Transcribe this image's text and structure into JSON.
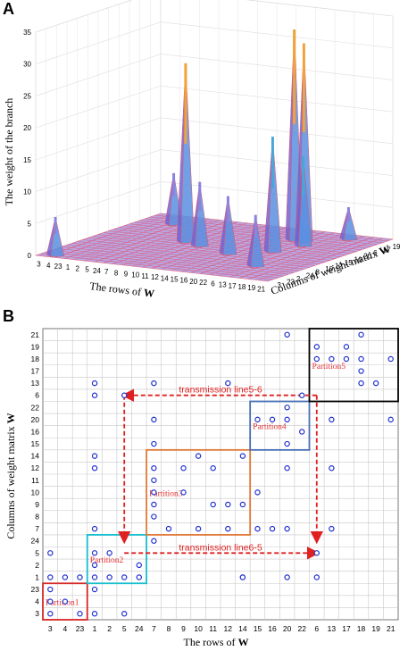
{
  "panelA": {
    "letter": "A",
    "zlabel": "The weight of the branch",
    "xlabel_prefix": "The rows of ",
    "xlabel_bold": "W",
    "ylabel_prefix": "Columns of weight matrix ",
    "ylabel_bold": "W",
    "zticks": [
      "0",
      "5",
      "10",
      "15",
      "20",
      "25",
      "30",
      "35"
    ],
    "row_ticks": [
      "3",
      "4",
      "23",
      "1",
      "2",
      "5",
      "24",
      "7",
      "8",
      "9",
      "10",
      "11",
      "12",
      "14",
      "15",
      "16",
      "20",
      "22",
      "6",
      "13",
      "17",
      "18",
      "19",
      "21"
    ],
    "col_ticks": [
      "3",
      "23",
      "2",
      "24",
      "8",
      "10",
      "12",
      "15",
      "16",
      "20",
      "6",
      "17",
      "19"
    ],
    "chart_data": {
      "type": "surface",
      "zlim": [
        0,
        35
      ],
      "peaks": [
        {
          "row": "1",
          "col": "22",
          "weight": 8
        },
        {
          "row": "4",
          "col": "3",
          "weight": 6
        },
        {
          "row": "8",
          "col": "14",
          "weight": 28
        },
        {
          "row": "10",
          "col": "12",
          "weight": 10
        },
        {
          "row": "15",
          "col": "9",
          "weight": 9
        },
        {
          "row": "20",
          "col": "6",
          "weight": 33
        },
        {
          "row": "22",
          "col": "6",
          "weight": 31
        },
        {
          "row": "22",
          "col": "14",
          "weight": 18
        },
        {
          "row": "6",
          "col": "20",
          "weight": 14
        },
        {
          "row": "13",
          "col": "5",
          "weight": 8
        },
        {
          "row": "17",
          "col": "18",
          "weight": 5
        }
      ]
    }
  },
  "panelB": {
    "letter": "B",
    "xlabel_prefix": "The rows of ",
    "xlabel_bold": "W",
    "ylabel_prefix": "Columns of weight matrix ",
    "ylabel_bold": "W",
    "chart_data": {
      "type": "scatter",
      "x_categories": [
        "3",
        "4",
        "23",
        "1",
        "2",
        "5",
        "24",
        "7",
        "8",
        "9",
        "10",
        "11",
        "12",
        "14",
        "15",
        "16",
        "20",
        "22",
        "6",
        "13",
        "17",
        "18",
        "19",
        "21"
      ],
      "y_categories": [
        "3",
        "4",
        "23",
        "1",
        "2",
        "5",
        "24",
        "7",
        "8",
        "9",
        "10",
        "11",
        "12",
        "14",
        "15",
        "16",
        "20",
        "22",
        "6",
        "13",
        "17",
        "18",
        "19",
        "21"
      ],
      "points": [
        [
          "3",
          "3"
        ],
        [
          "3",
          "4"
        ],
        [
          "3",
          "23"
        ],
        [
          "3",
          "1"
        ],
        [
          "3",
          "5"
        ],
        [
          "4",
          "1"
        ],
        [
          "4",
          "4"
        ],
        [
          "23",
          "3"
        ],
        [
          "23",
          "1"
        ],
        [
          "1",
          "23"
        ],
        [
          "1",
          "3"
        ],
        [
          "1",
          "1"
        ],
        [
          "1",
          "2"
        ],
        [
          "1",
          "5"
        ],
        [
          "1",
          "7"
        ],
        [
          "1",
          "12"
        ],
        [
          "1",
          "14"
        ],
        [
          "1",
          "6"
        ],
        [
          "1",
          "13"
        ],
        [
          "2",
          "1"
        ],
        [
          "2",
          "5"
        ],
        [
          "5",
          "1"
        ],
        [
          "5",
          "3"
        ],
        [
          "5",
          "6"
        ],
        [
          "24",
          "1"
        ],
        [
          "24",
          "2"
        ],
        [
          "7",
          "13"
        ],
        [
          "7",
          "20"
        ],
        [
          "7",
          "15"
        ],
        [
          "7",
          "12"
        ],
        [
          "7",
          "9"
        ],
        [
          "7",
          "11"
        ],
        [
          "7",
          "10"
        ],
        [
          "7",
          "8"
        ],
        [
          "7",
          "24"
        ],
        [
          "8",
          "7"
        ],
        [
          "9",
          "12"
        ],
        [
          "9",
          "10"
        ],
        [
          "10",
          "7"
        ],
        [
          "10",
          "14"
        ],
        [
          "11",
          "9"
        ],
        [
          "11",
          "12"
        ],
        [
          "12",
          "9"
        ],
        [
          "12",
          "7"
        ],
        [
          "14",
          "14"
        ],
        [
          "14",
          "9"
        ],
        [
          "14",
          "1"
        ],
        [
          "15",
          "10"
        ],
        [
          "15",
          "7"
        ],
        [
          "12",
          "13"
        ],
        [
          "14",
          "1"
        ],
        [
          "15",
          "20"
        ],
        [
          "16",
          "20"
        ],
        [
          "16",
          "7"
        ],
        [
          "20",
          "21"
        ],
        [
          "20",
          "22"
        ],
        [
          "20",
          "20"
        ],
        [
          "20",
          "15"
        ],
        [
          "20",
          "1"
        ],
        [
          "22",
          "6"
        ],
        [
          "22",
          "16"
        ],
        [
          "6",
          "1"
        ],
        [
          "6",
          "5"
        ],
        [
          "6",
          "19"
        ],
        [
          "6",
          "18"
        ],
        [
          "13",
          "18"
        ],
        [
          "13",
          "12"
        ],
        [
          "13",
          "7"
        ],
        [
          "13",
          "20"
        ],
        [
          "17",
          "18"
        ],
        [
          "17",
          "19"
        ],
        [
          "18",
          "21"
        ],
        [
          "18",
          "17"
        ],
        [
          "18",
          "18"
        ],
        [
          "18",
          "13"
        ],
        [
          "19",
          "13"
        ],
        [
          "21",
          "18"
        ],
        [
          "21",
          "20"
        ],
        [
          "20",
          "12"
        ],
        [
          "20",
          "7"
        ]
      ],
      "partitions": [
        {
          "label": "Partition1",
          "color": "#d62728",
          "x": [
            "3",
            "23"
          ],
          "y": [
            "3",
            "23"
          ]
        },
        {
          "label": "Partition2",
          "color": "#17becf",
          "x": [
            "1",
            "24"
          ],
          "y": [
            "1",
            "24"
          ]
        },
        {
          "label": "Partition3",
          "color": "#e07a3a",
          "x": [
            "7",
            "14"
          ],
          "y": [
            "7",
            "14"
          ]
        },
        {
          "label": "Partition4",
          "color": "#4a6fb5",
          "x": [
            "15",
            "22"
          ],
          "y": [
            "15",
            "22"
          ]
        },
        {
          "label": "Partition5",
          "color": "#000000",
          "x": [
            "6",
            "21"
          ],
          "y": [
            "6",
            "21"
          ]
        }
      ],
      "annotations": [
        {
          "text": "transmission line5-6",
          "from": [
            "6",
            "6"
          ],
          "to": [
            "5",
            "6"
          ]
        },
        {
          "text": "transmission line6-5",
          "from": [
            "5",
            "5"
          ],
          "to": [
            "6",
            "5"
          ]
        }
      ]
    }
  }
}
